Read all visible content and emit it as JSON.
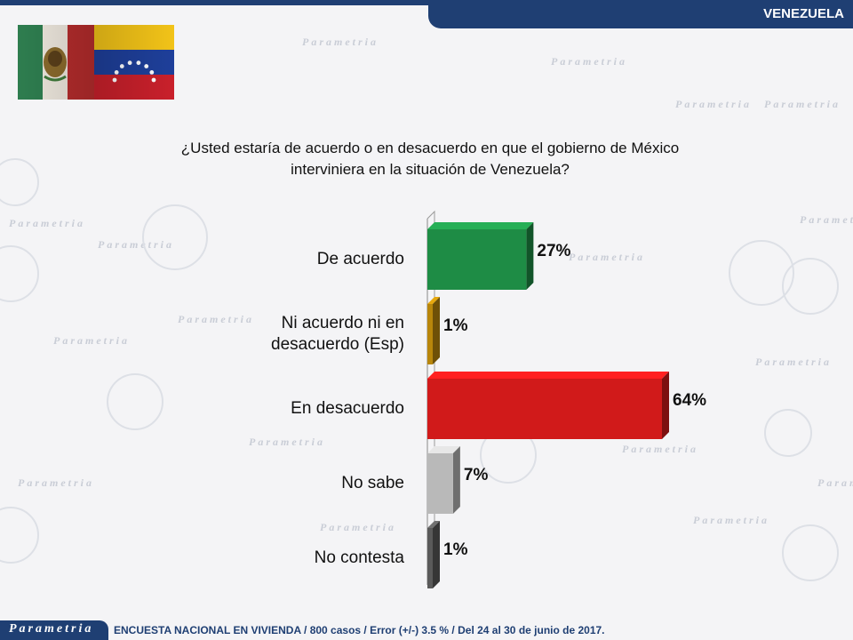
{
  "header": {
    "section_title": "VENEZUELA"
  },
  "brand": {
    "logo_text": "Parametria",
    "watermark_text": "Parametria"
  },
  "question": {
    "line1": "¿Usted estaría de acuerdo o en desacuerdo en que el gobierno de México",
    "line2": "interviniera en la situación de Venezuela?"
  },
  "footer": {
    "source": "ENCUESTA NACIONAL EN VIVIENDA / 800 casos / Error (+/-) 3.5 % / Del 24 al 30 de junio de 2017."
  },
  "colors": {
    "header": "#1f3f73",
    "de_acuerdo": "#1e8c45",
    "ni_acuerdo": "#b8860b",
    "desacuerdo": "#d11a1a",
    "no_sabe": "#b9b9b9",
    "no_contesta": "#5a5a5a"
  },
  "chart_data": {
    "type": "bar",
    "orientation": "horizontal",
    "categories": [
      [
        "De acuerdo"
      ],
      [
        "Ni acuerdo ni en",
        "desacuerdo (Esp)"
      ],
      [
        "En desacuerdo"
      ],
      [
        "No sabe"
      ],
      [
        "No contesta"
      ]
    ],
    "values": [
      27,
      1,
      64,
      7,
      1
    ],
    "value_labels": [
      "27%",
      "1%",
      "64%",
      "7%",
      "1%"
    ],
    "bar_colors": [
      "#1e8c45",
      "#b8860b",
      "#d11a1a",
      "#b9b9b9",
      "#5a5a5a"
    ],
    "xlim": [
      0,
      64
    ],
    "grid": false,
    "legend": "none"
  }
}
